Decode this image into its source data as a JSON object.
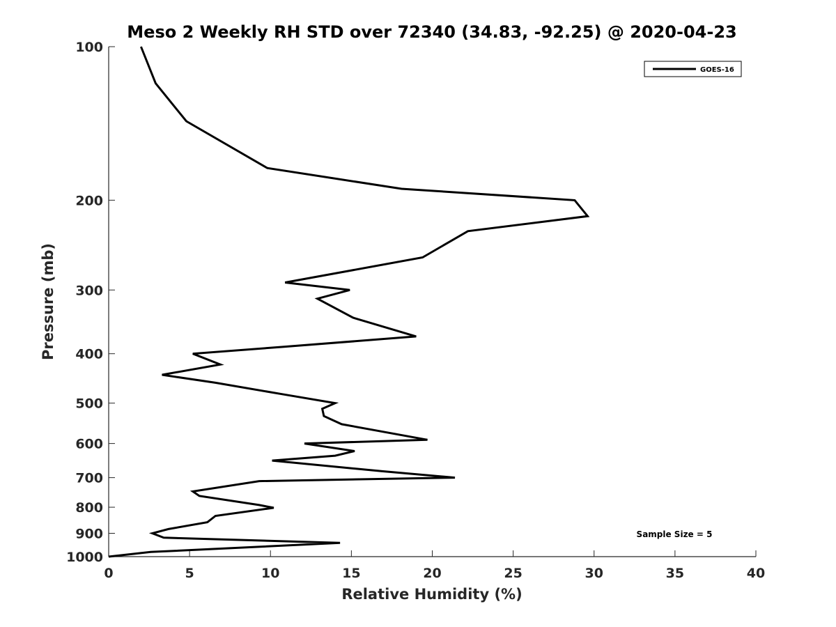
{
  "chart_data": {
    "type": "line",
    "title": "Meso 2 Weekly RH STD over 72340 (34.83, -92.25) @ 2020-04-23",
    "xlabel": "Relative Humidity (%)",
    "ylabel": "Pressure (mb)",
    "xlim": [
      0,
      40
    ],
    "ylim": [
      100,
      1000
    ],
    "yscale": "log",
    "yreversed": true,
    "xticks": [
      0,
      5,
      10,
      15,
      20,
      25,
      30,
      35,
      40
    ],
    "xtick_labels": [
      "0",
      "5",
      "10",
      "15",
      "20",
      "25",
      "30",
      "35",
      "40"
    ],
    "yticks": [
      100,
      200,
      300,
      400,
      500,
      600,
      700,
      800,
      900,
      1000
    ],
    "ytick_labels": [
      "100",
      "200",
      "300",
      "400",
      "500",
      "600",
      "700",
      "800",
      "900",
      "1000"
    ],
    "grid": false,
    "legend_position": "top-right",
    "annotation": "Sample Size = 5",
    "series": [
      {
        "name": "GOES-16",
        "color": "#000000",
        "x": [
          2.0,
          2.9,
          4.8,
          9.8,
          18.1,
          28.8,
          29.6,
          22.2,
          19.4,
          10.9,
          14.9,
          12.9,
          15.1,
          19.0,
          10.7,
          5.2,
          6.9,
          3.3,
          6.6,
          10.7,
          14.0,
          13.2,
          13.3,
          14.4,
          19.7,
          12.1,
          15.2,
          14.0,
          10.1,
          16.9,
          21.4,
          9.3,
          5.2,
          5.6,
          9.3,
          10.2,
          6.6,
          6.1,
          3.7,
          2.7,
          3.4,
          14.3,
          2.6,
          0.0
        ],
        "y": [
          100,
          118,
          140,
          173,
          190,
          200,
          215,
          230,
          259,
          290,
          300,
          312,
          340,
          370,
          388,
          400,
          420,
          440,
          456,
          480,
          500,
          513,
          530,
          550,
          590,
          600,
          621,
          634,
          648,
          680,
          700,
          711,
          745,
          760,
          792,
          802,
          832,
          856,
          883,
          900,
          918,
          940,
          979,
          1000
        ]
      }
    ]
  }
}
